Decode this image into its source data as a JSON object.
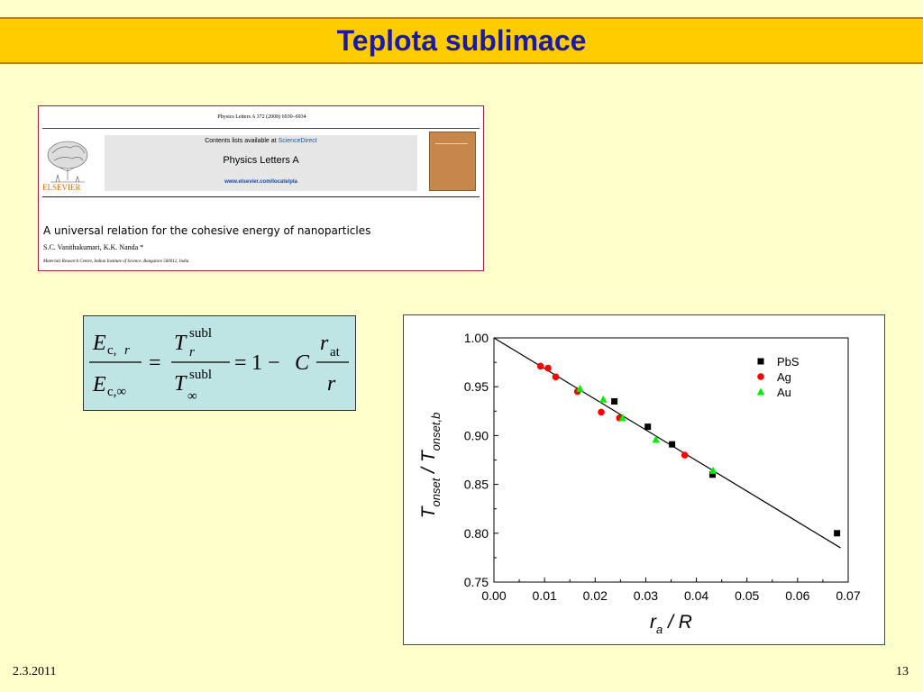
{
  "slide": {
    "title": "Teplota sublimace",
    "date": "2.3.2011",
    "page_number": "13"
  },
  "paper": {
    "journal_line": "Physics Letters A 372 (2008) 6930–6934",
    "contents_prefix": "Contents lists available at ",
    "contents_link": "ScienceDirect",
    "journal_name": "Physics Letters A",
    "journal_url": "www.elsevier.com/locate/pla",
    "publisher_logo_text": "ELSEVIER",
    "title": "A universal relation for the cohesive energy of nanoparticles",
    "authors": "S.C. Vanithakumari, K.K. Nanda *",
    "affiliation": "Materials Research Centre, Indian Institute of Science, Bangalore 560012, India"
  },
  "equation": {
    "E": "E",
    "sub_cr": "c,",
    "r": "r",
    "sub_cinf": "c,∞",
    "equals": "=",
    "T": "T",
    "subl": "subl",
    "inf": "∞",
    "one_minus": "1 − ",
    "C": "C",
    "at": "at"
  },
  "chart_data": {
    "type": "scatter",
    "xlabel": "r_a / R",
    "ylabel": "T_onset / T_onset,b",
    "xlim": [
      0.0,
      0.07
    ],
    "ylim": [
      0.75,
      1.0
    ],
    "x_ticks": [
      "0.00",
      "0.01",
      "0.02",
      "0.03",
      "0.04",
      "0.05",
      "0.06",
      "0.07"
    ],
    "y_ticks": [
      "0.75",
      "0.80",
      "0.85",
      "0.90",
      "0.95",
      "1.00"
    ],
    "legend_position": "top-right",
    "series": [
      {
        "name": "PbS",
        "marker": "square",
        "color": "#000000",
        "x": [
          0.0238,
          0.0304,
          0.0352,
          0.0432,
          0.0678
        ],
        "y": [
          0.935,
          0.909,
          0.891,
          0.86,
          0.8
        ]
      },
      {
        "name": "Ag",
        "marker": "circle",
        "color": "#ff0000",
        "x": [
          0.0092,
          0.0107,
          0.0122,
          0.0165,
          0.0212,
          0.0248,
          0.0377
        ],
        "y": [
          0.971,
          0.969,
          0.96,
          0.945,
          0.924,
          0.918,
          0.88
        ]
      },
      {
        "name": "Au",
        "marker": "triangle",
        "color": "#00ee00",
        "x": [
          0.017,
          0.0216,
          0.0254,
          0.032,
          0.0433
        ],
        "y": [
          0.948,
          0.937,
          0.918,
          0.896,
          0.864
        ]
      }
    ],
    "fit_line": {
      "x": [
        0.0,
        0.0685
      ],
      "y": [
        1.0,
        0.785
      ]
    }
  }
}
